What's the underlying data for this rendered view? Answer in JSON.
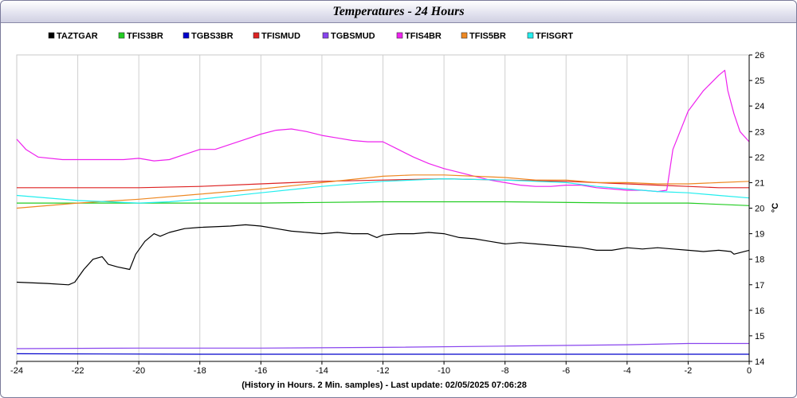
{
  "title": "Temperatures - 24 Hours",
  "footer": "(History in Hours. 2 Min. samples) - Last update: 02/05/2025 07:06:28",
  "chart_data": {
    "type": "line",
    "title": "Temperatures - 24 Hours",
    "xlabel": "(History in Hours. 2 Min. samples) - Last update: 02/05/2025 07:06:28",
    "ylabel": "°C",
    "xlim": [
      -24,
      0
    ],
    "ylim": [
      14,
      26
    ],
    "x_ticks": [
      -24,
      -22,
      -20,
      -18,
      -16,
      -14,
      -12,
      -10,
      -8,
      -6,
      -4,
      -2,
      0
    ],
    "y_ticks": [
      14,
      15,
      16,
      17,
      18,
      19,
      20,
      21,
      22,
      23,
      24,
      25,
      26
    ],
    "x_grid": true,
    "y_grid": false,
    "legend_position": "top",
    "series": [
      {
        "name": "TAZTGAR",
        "color": "#000000",
        "points": [
          [
            -24,
            17.1
          ],
          [
            -23,
            17.05
          ],
          [
            -22.3,
            17.0
          ],
          [
            -22.1,
            17.1
          ],
          [
            -21.8,
            17.6
          ],
          [
            -21.5,
            18.0
          ],
          [
            -21.2,
            18.1
          ],
          [
            -21.0,
            17.8
          ],
          [
            -20.7,
            17.7
          ],
          [
            -20.3,
            17.6
          ],
          [
            -20.1,
            18.2
          ],
          [
            -19.8,
            18.7
          ],
          [
            -19.5,
            19.0
          ],
          [
            -19.3,
            18.9
          ],
          [
            -19.0,
            19.05
          ],
          [
            -18.5,
            19.2
          ],
          [
            -18.0,
            19.25
          ],
          [
            -17.0,
            19.3
          ],
          [
            -16.5,
            19.35
          ],
          [
            -16.0,
            19.3
          ],
          [
            -15.5,
            19.2
          ],
          [
            -15.0,
            19.1
          ],
          [
            -14.5,
            19.05
          ],
          [
            -14.0,
            19.0
          ],
          [
            -13.5,
            19.05
          ],
          [
            -13.0,
            19.0
          ],
          [
            -12.5,
            19.0
          ],
          [
            -12.2,
            18.85
          ],
          [
            -12.0,
            18.95
          ],
          [
            -11.5,
            19.0
          ],
          [
            -11.0,
            19.0
          ],
          [
            -10.5,
            19.05
          ],
          [
            -10.0,
            19.0
          ],
          [
            -9.5,
            18.85
          ],
          [
            -9.0,
            18.8
          ],
          [
            -8.5,
            18.7
          ],
          [
            -8.0,
            18.6
          ],
          [
            -7.5,
            18.65
          ],
          [
            -7.0,
            18.6
          ],
          [
            -6.5,
            18.55
          ],
          [
            -6.0,
            18.5
          ],
          [
            -5.5,
            18.45
          ],
          [
            -5.0,
            18.35
          ],
          [
            -4.5,
            18.35
          ],
          [
            -4.0,
            18.45
          ],
          [
            -3.5,
            18.4
          ],
          [
            -3.0,
            18.45
          ],
          [
            -2.5,
            18.4
          ],
          [
            -2.0,
            18.35
          ],
          [
            -1.5,
            18.3
          ],
          [
            -1.0,
            18.35
          ],
          [
            -0.6,
            18.3
          ],
          [
            -0.5,
            18.2
          ],
          [
            0,
            18.35
          ]
        ]
      },
      {
        "name": "TFIS3BR",
        "color": "#22cc22",
        "points": [
          [
            -24,
            20.2
          ],
          [
            -20,
            20.2
          ],
          [
            -16,
            20.2
          ],
          [
            -12,
            20.25
          ],
          [
            -8,
            20.25
          ],
          [
            -4,
            20.2
          ],
          [
            -2,
            20.2
          ],
          [
            -1,
            20.15
          ],
          [
            0,
            20.1
          ]
        ]
      },
      {
        "name": "TGBS3BR",
        "color": "#0000cc",
        "points": [
          [
            -24,
            14.3
          ],
          [
            -18,
            14.28
          ],
          [
            -12,
            14.28
          ],
          [
            -6,
            14.28
          ],
          [
            0,
            14.28
          ]
        ]
      },
      {
        "name": "TFISMUD",
        "color": "#dd2222",
        "points": [
          [
            -24,
            20.8
          ],
          [
            -20,
            20.8
          ],
          [
            -18,
            20.85
          ],
          [
            -16,
            20.95
          ],
          [
            -14,
            21.05
          ],
          [
            -12,
            21.1
          ],
          [
            -10,
            21.15
          ],
          [
            -8,
            21.1
          ],
          [
            -6,
            21.05
          ],
          [
            -4,
            20.95
          ],
          [
            -3,
            20.9
          ],
          [
            -2,
            20.85
          ],
          [
            -1,
            20.8
          ],
          [
            0,
            20.8
          ]
        ]
      },
      {
        "name": "TGBSMUD",
        "color": "#8844ee",
        "points": [
          [
            -24,
            14.5
          ],
          [
            -20,
            14.52
          ],
          [
            -16,
            14.52
          ],
          [
            -12,
            14.55
          ],
          [
            -8,
            14.6
          ],
          [
            -4,
            14.65
          ],
          [
            -2,
            14.7
          ],
          [
            0,
            14.7
          ]
        ]
      },
      {
        "name": "TFIS4BR",
        "color": "#ee22ee",
        "points": [
          [
            -24,
            22.7
          ],
          [
            -23.7,
            22.3
          ],
          [
            -23.3,
            22.0
          ],
          [
            -22.5,
            21.9
          ],
          [
            -21.5,
            21.9
          ],
          [
            -20.5,
            21.9
          ],
          [
            -20,
            21.95
          ],
          [
            -19.5,
            21.85
          ],
          [
            -19,
            21.9
          ],
          [
            -18.5,
            22.1
          ],
          [
            -18,
            22.3
          ],
          [
            -17.5,
            22.3
          ],
          [
            -17,
            22.5
          ],
          [
            -16.5,
            22.7
          ],
          [
            -16,
            22.9
          ],
          [
            -15.5,
            23.05
          ],
          [
            -15,
            23.1
          ],
          [
            -14.5,
            23.0
          ],
          [
            -14,
            22.85
          ],
          [
            -13.5,
            22.75
          ],
          [
            -13,
            22.65
          ],
          [
            -12.5,
            22.6
          ],
          [
            -12,
            22.6
          ],
          [
            -11.5,
            22.3
          ],
          [
            -11,
            22.0
          ],
          [
            -10.5,
            21.75
          ],
          [
            -10,
            21.55
          ],
          [
            -9.5,
            21.4
          ],
          [
            -9,
            21.25
          ],
          [
            -8.5,
            21.1
          ],
          [
            -8,
            21.0
          ],
          [
            -7.5,
            20.9
          ],
          [
            -7,
            20.85
          ],
          [
            -6.5,
            20.85
          ],
          [
            -6,
            20.9
          ],
          [
            -5.5,
            20.9
          ],
          [
            -5,
            20.8
          ],
          [
            -4.5,
            20.75
          ],
          [
            -4,
            20.7
          ],
          [
            -3.5,
            20.7
          ],
          [
            -3,
            20.65
          ],
          [
            -2.7,
            20.7
          ],
          [
            -2.5,
            22.3
          ],
          [
            -2.2,
            23.2
          ],
          [
            -2,
            23.8
          ],
          [
            -1.5,
            24.6
          ],
          [
            -1,
            25.2
          ],
          [
            -0.8,
            25.4
          ],
          [
            -0.7,
            24.6
          ],
          [
            -0.5,
            23.7
          ],
          [
            -0.3,
            23.0
          ],
          [
            0,
            22.6
          ]
        ]
      },
      {
        "name": "TFIS5BR",
        "color": "#ee8822",
        "points": [
          [
            -24,
            20.0
          ],
          [
            -22,
            20.2
          ],
          [
            -20,
            20.35
          ],
          [
            -18,
            20.55
          ],
          [
            -16,
            20.75
          ],
          [
            -14,
            21.0
          ],
          [
            -12,
            21.25
          ],
          [
            -11,
            21.3
          ],
          [
            -10,
            21.3
          ],
          [
            -9,
            21.25
          ],
          [
            -8,
            21.2
          ],
          [
            -7,
            21.1
          ],
          [
            -6,
            21.1
          ],
          [
            -5,
            21.0
          ],
          [
            -4,
            21.0
          ],
          [
            -3,
            20.95
          ],
          [
            -2,
            20.95
          ],
          [
            -1,
            21.0
          ],
          [
            0,
            21.05
          ]
        ]
      },
      {
        "name": "TFISGRT",
        "color": "#22eeee",
        "points": [
          [
            -24,
            20.5
          ],
          [
            -22,
            20.3
          ],
          [
            -21,
            20.25
          ],
          [
            -20,
            20.2
          ],
          [
            -19,
            20.25
          ],
          [
            -18,
            20.35
          ],
          [
            -16,
            20.6
          ],
          [
            -14,
            20.85
          ],
          [
            -12,
            21.05
          ],
          [
            -11,
            21.1
          ],
          [
            -10,
            21.15
          ],
          [
            -8,
            21.1
          ],
          [
            -7,
            21.05
          ],
          [
            -6,
            21.0
          ],
          [
            -5,
            20.85
          ],
          [
            -4,
            20.75
          ],
          [
            -3,
            20.65
          ],
          [
            -2,
            20.6
          ],
          [
            -1,
            20.5
          ],
          [
            0,
            20.4
          ]
        ]
      }
    ]
  }
}
